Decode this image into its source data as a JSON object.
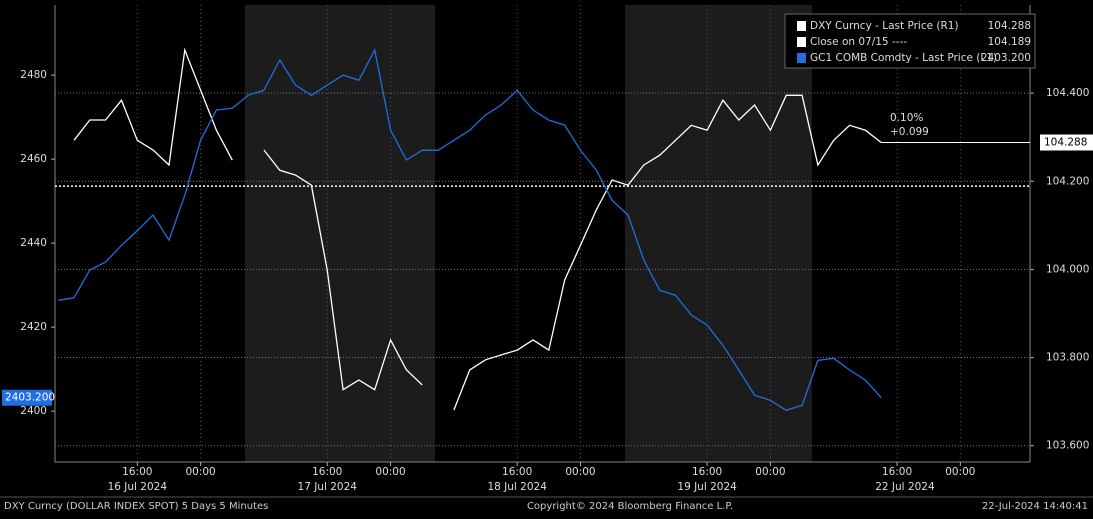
{
  "chart_data": {
    "type": "line",
    "x": [
      6,
      8,
      10,
      12,
      14,
      16,
      18,
      20,
      22,
      24,
      26,
      28,
      30,
      32,
      34,
      36,
      38,
      40,
      42,
      44,
      46,
      48,
      50,
      52,
      54,
      56,
      58,
      60,
      62,
      64,
      66,
      68,
      70,
      72,
      74,
      76,
      78,
      80,
      82,
      84,
      86,
      88,
      90,
      92,
      94,
      96,
      98,
      100,
      102,
      104,
      106,
      108,
      110
    ],
    "series": [
      {
        "name": "DXY Curncy - Last Price (R1)",
        "legend_value": "104.288",
        "color": "#ffffff",
        "axis": "y2",
        "values": [
          null,
          104.293,
          104.339,
          104.339,
          104.384,
          104.293,
          104.271,
          104.237,
          104.498,
          104.407,
          104.316,
          104.248,
          null,
          104.271,
          104.225,
          104.214,
          104.191,
          103.999,
          103.727,
          103.749,
          103.727,
          103.84,
          103.772,
          103.738,
          null,
          103.681,
          103.772,
          103.795,
          103.806,
          103.817,
          103.84,
          103.817,
          103.976,
          104.055,
          104.135,
          104.203,
          104.191,
          104.237,
          104.259,
          104.293,
          104.327,
          104.316,
          104.384,
          104.339,
          104.373,
          104.316,
          104.395,
          104.395,
          104.237,
          104.293,
          104.327,
          104.316,
          104.288
        ]
      },
      {
        "name": "GC1 COMB Comdty - Last Price (L1)",
        "legend_value": "2403.200",
        "color": "#1f6fe0",
        "axis": "y",
        "values": [
          2426.4,
          2427,
          2433.6,
          2435.5,
          2439.5,
          2443,
          2446.7,
          2440.7,
          2451.4,
          2464.5,
          2471.7,
          2472.1,
          2475.2,
          2476.4,
          2483.6,
          2477.6,
          2475.2,
          2477.6,
          2480,
          2478.8,
          2486,
          2466.9,
          2459.8,
          2462.1,
          2462.1,
          2464.5,
          2466.9,
          2470.5,
          2472.9,
          2476.4,
          2471.7,
          2469.3,
          2468.1,
          2462.1,
          2457.4,
          2450.2,
          2446.7,
          2436,
          2428.8,
          2427.6,
          2422.9,
          2420.5,
          2415.7,
          2409.8,
          2403.8,
          2402.6,
          2400.2,
          2401.4,
          2412.1,
          2412.6,
          2409.8,
          2407.4,
          2403.2
        ]
      }
    ],
    "close": {
      "name": "Close on 07/15 ----",
      "value": 104.189,
      "axis": "y2"
    },
    "annotations": [
      "0.10%",
      "+0.099"
    ],
    "xlim": [
      5.6,
      128.8
    ],
    "xticks": [
      {
        "value": 16,
        "label": "16:00"
      },
      {
        "value": 24,
        "label": "00:00"
      },
      {
        "value": 40,
        "label": "16:00"
      },
      {
        "value": 48,
        "label": "00:00"
      },
      {
        "value": 64,
        "label": "16:00"
      },
      {
        "value": 72,
        "label": "00:00"
      },
      {
        "value": 88,
        "label": "16:00"
      },
      {
        "value": 96,
        "label": "00:00"
      },
      {
        "value": 112,
        "label": "16:00"
      },
      {
        "value": 120,
        "label": "00:00"
      }
    ],
    "date_ticks": [
      {
        "value": 16,
        "label": "16 Jul 2024"
      },
      {
        "value": 40,
        "label": "17 Jul 2024"
      },
      {
        "value": 64,
        "label": "18 Jul 2024"
      },
      {
        "value": 88,
        "label": "19 Jul 2024"
      },
      {
        "value": 113,
        "label": "22 Jul 2024"
      }
    ],
    "ylim": [
      2387.9,
      2496.7
    ],
    "yticks": [
      2400,
      2420,
      2440,
      2460,
      2480
    ],
    "y2lim": [
      103.563,
      104.6
    ],
    "y2ticks": [
      {
        "value": 103.6,
        "label": "103.600"
      },
      {
        "value": 103.8,
        "label": "103.800"
      },
      {
        "value": 104,
        "label": "104.000"
      },
      {
        "value": 104.2,
        "label": "104.200"
      },
      {
        "value": 104.4,
        "label": "104.400"
      }
    ],
    "grid": true,
    "footer": {
      "left": "DXY Curncy (DOLLAR INDEX SPOT) 5 Days 5 Minutes",
      "center": "Copyright© 2024 Bloomberg Finance L.P.",
      "right": "22-Jul-2024 14:40:41"
    }
  }
}
